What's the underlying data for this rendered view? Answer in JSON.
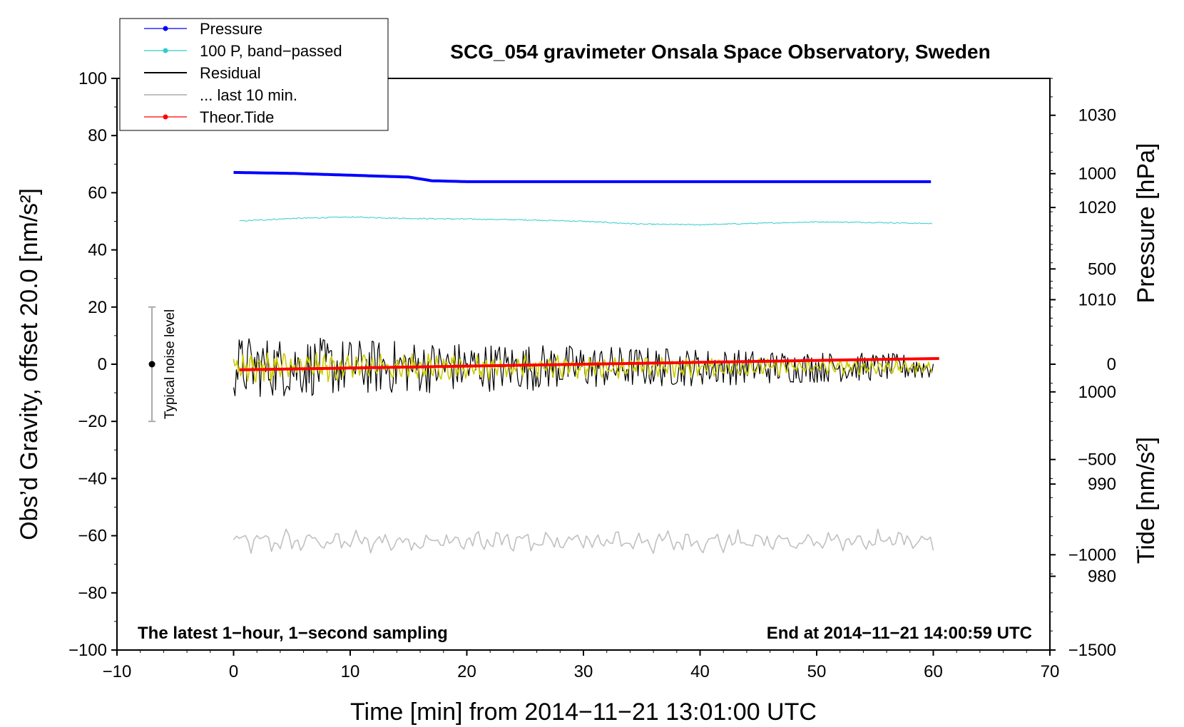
{
  "chart_data": {
    "type": "line",
    "title": "SCG_054 gravimeter Onsala Space Observatory, Sweden",
    "note_left": "The latest 1−hour, 1−second sampling",
    "note_right": "End at 2014−11−21 14:00:59 UTC",
    "xlabel": "Time [min] from 2014−11−21 13:01:00 UTC",
    "ylabel": "Obs’d Gravity, offset 20.0 [nm/s²]",
    "y2label_pressure": "Pressure [hPa]",
    "y2label_tide": "Tide [nm/s²]",
    "xlim": [
      -10,
      70
    ],
    "ylim": [
      -100,
      100
    ],
    "pressure_lim": [
      972,
      1034
    ],
    "tide_lim": [
      -1500,
      1500
    ],
    "x_ticks": [
      "−10",
      "0",
      "10",
      "20",
      "30",
      "40",
      "50",
      "60",
      "70"
    ],
    "y_ticks": [
      "−100",
      "−80",
      "−60",
      "−40",
      "−20",
      "0",
      "20",
      "40",
      "60",
      "80",
      "100"
    ],
    "pressure_ticks": [
      "980",
      "990",
      "1000",
      "1010",
      "1020",
      "1030"
    ],
    "tide_ticks": [
      "−1500",
      "−1000",
      "−500",
      "0",
      "500",
      "1000"
    ],
    "noise_level": {
      "label": "Typical noise level",
      "x": -7,
      "center": 0,
      "low": -20,
      "high": 20
    },
    "series": [
      {
        "name": "Pressure",
        "color": "#0000ff",
        "axis": "pressure",
        "x": [
          0,
          5,
          10,
          15,
          17,
          20,
          30,
          40,
          50,
          60
        ],
        "values": [
          1023.8,
          1023.7,
          1023.5,
          1023.3,
          1022.9,
          1022.8,
          1022.8,
          1022.8,
          1022.8,
          1022.8
        ]
      },
      {
        "name": "100 P, band−passed",
        "color": "#33cccc",
        "axis": "gravity",
        "x": [
          0,
          5,
          10,
          15,
          20,
          25,
          30,
          35,
          40,
          45,
          50,
          55,
          60
        ],
        "values": [
          50,
          51,
          51.5,
          51,
          50.8,
          50.5,
          50,
          49,
          48.8,
          49.3,
          49.8,
          49.6,
          49.2
        ]
      },
      {
        "name": "Residual",
        "color": "#000000",
        "axis": "gravity",
        "x_range": [
          0,
          60
        ],
        "amplitude_start": 10,
        "amplitude_end": 4,
        "mean": -1
      },
      {
        "name": "... last 10 min.",
        "color": "#c0c0c0",
        "axis": "gravity",
        "x_range": [
          0,
          60
        ],
        "mean": -62,
        "amplitude": 4
      },
      {
        "name": "Theor.Tide",
        "color": "#ff0000",
        "axis": "tide",
        "x": [
          0,
          10,
          20,
          30,
          40,
          50,
          60.5
        ],
        "values": [
          -30,
          -20,
          -10,
          0,
          10,
          20,
          30
        ]
      },
      {
        "name": "",
        "color": "#cccc00",
        "axis": "gravity",
        "x_range": [
          0,
          60
        ],
        "amplitude_start": 5,
        "amplitude_end": 2,
        "mean": -1
      }
    ]
  }
}
